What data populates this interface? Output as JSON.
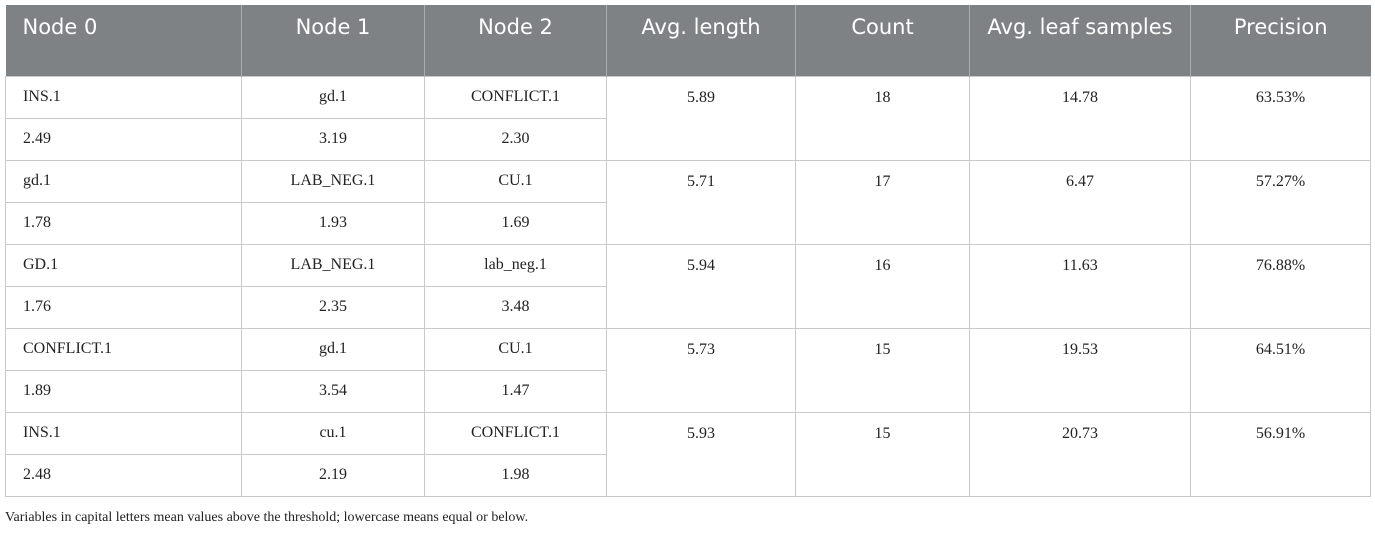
{
  "table": {
    "header": [
      "Node 0",
      "Node 1",
      "Node 2",
      "Avg. length",
      "Count",
      "Avg. leaf samples",
      "Precision"
    ],
    "rows": [
      {
        "nodes": [
          "INS.1",
          "gd.1",
          "CONFLICT.1"
        ],
        "scores": [
          "2.49",
          "3.19",
          "2.30"
        ],
        "avg_length": "5.89",
        "count": "18",
        "avg_leaf_samples": "14.78",
        "precision": "63.53%"
      },
      {
        "nodes": [
          "gd.1",
          "LAB_NEG.1",
          "CU.1"
        ],
        "scores": [
          "1.78",
          "1.93",
          "1.69"
        ],
        "avg_length": "5.71",
        "count": "17",
        "avg_leaf_samples": "6.47",
        "precision": "57.27%"
      },
      {
        "nodes": [
          "GD.1",
          "LAB_NEG.1",
          "lab_neg.1"
        ],
        "scores": [
          "1.76",
          "2.35",
          "3.48"
        ],
        "avg_length": "5.94",
        "count": "16",
        "avg_leaf_samples": "11.63",
        "precision": "76.88%"
      },
      {
        "nodes": [
          "CONFLICT.1",
          "gd.1",
          "CU.1"
        ],
        "scores": [
          "1.89",
          "3.54",
          "1.47"
        ],
        "avg_length": "5.73",
        "count": "15",
        "avg_leaf_samples": "19.53",
        "precision": "64.51%"
      },
      {
        "nodes": [
          "INS.1",
          "cu.1",
          "CONFLICT.1"
        ],
        "scores": [
          "2.48",
          "2.19",
          "1.98"
        ],
        "avg_length": "5.93",
        "count": "15",
        "avg_leaf_samples": "20.73",
        "precision": "56.91%"
      }
    ],
    "footnote": "Variables in capital letters mean values above the threshold; lowercase means equal or below."
  }
}
